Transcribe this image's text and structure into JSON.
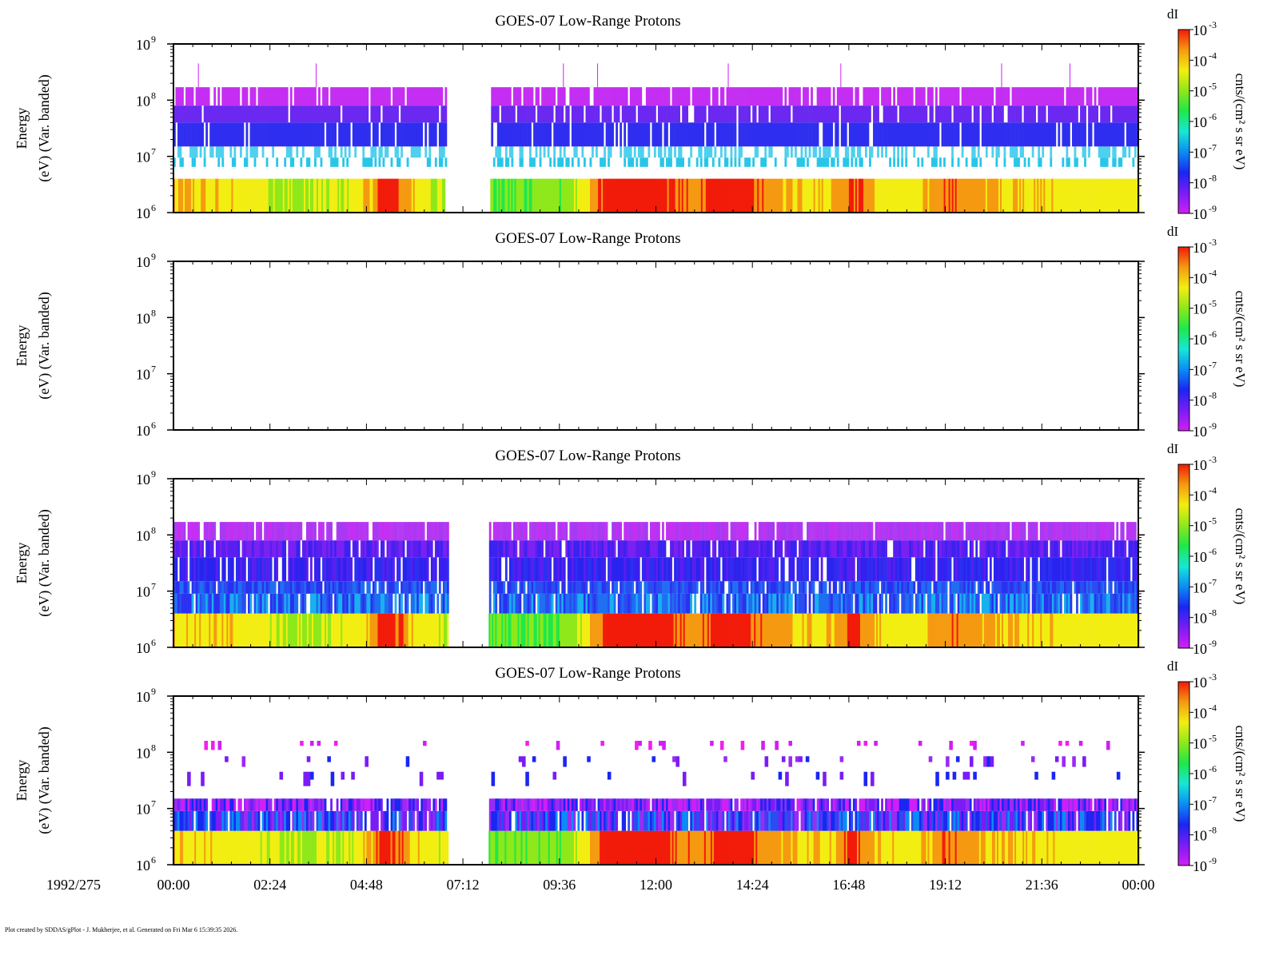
{
  "footer": "Plot created by SDDAS/gPlot - J. Mukherjee, et al.  Generated on Fri Mar 6 15:39:35 2026.",
  "date_label": "1992/275",
  "x_ticks": [
    "00:00",
    "02:24",
    "04:48",
    "07:12",
    "09:36",
    "12:00",
    "14:24",
    "16:48",
    "19:12",
    "21:36",
    "00:00"
  ],
  "colorbar": {
    "label": "dI",
    "unit": "cnts/(cm² s sr eV)",
    "base": "10",
    "exponents": [
      "-3",
      "-4",
      "-5",
      "-6",
      "-7",
      "-8",
      "-9"
    ]
  },
  "colors": {
    "scale": [
      "#d11ef5",
      "#7a1cf5",
      "#1a26f2",
      "#0a8cf5",
      "#18e6d6",
      "#1ee84a",
      "#8ee81a",
      "#f2ee12",
      "#f59a10",
      "#f21a08"
    ]
  },
  "chart_data": [
    {
      "type": "heatmap",
      "title": "GOES-07 Low-Range Protons",
      "ylabel": [
        "Energy",
        "(eV) (Var. banded)"
      ],
      "yscale": "log",
      "ylim": [
        1000000,
        1000000000
      ],
      "y_ticks": [
        {
          "base": "10",
          "exp": "9"
        },
        {
          "base": "10",
          "exp": "8"
        },
        {
          "base": "10",
          "exp": "7"
        },
        {
          "base": "10",
          "exp": "6"
        }
      ],
      "xlim_hours": [
        0,
        24
      ],
      "data_gap_hours": [
        6.8,
        7.87
      ],
      "bands": [
        {
          "range_eV": [
            1000000,
            4000000
          ],
          "pattern": "smooth"
        },
        {
          "range_eV": [
            6500000,
            9500000
          ],
          "pattern": "sparse",
          "color": "#27c6e8"
        },
        {
          "range_eV": [
            9500000,
            15000000
          ],
          "pattern": "sparse",
          "color": "#4fd0ee"
        },
        {
          "range_eV": [
            15000000,
            40000000
          ],
          "pattern": "dense",
          "color": "#2f2ef0"
        },
        {
          "range_eV": [
            40000000,
            80000000
          ],
          "pattern": "dense",
          "color": "#6a28f0"
        },
        {
          "range_eV": [
            80000000,
            170000000
          ],
          "pattern": "dense",
          "color": "#c42ef2"
        }
      ],
      "spikes_hours": [
        0.62,
        3.55,
        9.7,
        10.55,
        13.8,
        16.6,
        20.6,
        22.3
      ],
      "colorbar_range": [
        1e-09,
        0.001
      ]
    },
    {
      "type": "heatmap",
      "title": "GOES-07 Low-Range Protons",
      "ylabel": [
        "Energy",
        "(eV) (Var. banded)"
      ],
      "yscale": "log",
      "ylim": [
        1000000,
        1000000000
      ],
      "y_ticks": [
        {
          "base": "10",
          "exp": "9"
        },
        {
          "base": "10",
          "exp": "8"
        },
        {
          "base": "10",
          "exp": "7"
        },
        {
          "base": "10",
          "exp": "6"
        }
      ],
      "xlim_hours": [
        0,
        24
      ],
      "bands": [],
      "colorbar_range": [
        1e-09,
        0.001
      ]
    },
    {
      "type": "heatmap",
      "title": "GOES-07 Low-Range Protons",
      "ylabel": [
        "Energy",
        "(eV) (Var. banded)"
      ],
      "yscale": "log",
      "ylim": [
        1000000,
        1000000000
      ],
      "y_ticks": [
        {
          "base": "10",
          "exp": "9"
        },
        {
          "base": "10",
          "exp": "8"
        },
        {
          "base": "10",
          "exp": "7"
        },
        {
          "base": "10",
          "exp": "6"
        }
      ],
      "xlim_hours": [
        0,
        24
      ],
      "data_gap_hours": [
        6.85,
        7.83
      ],
      "bands": [
        {
          "range_eV": [
            1000000,
            4000000
          ],
          "pattern": "smooth"
        },
        {
          "range_eV": [
            4000000,
            9000000
          ],
          "pattern": "mixed",
          "palette": [
            "#1f6ef2",
            "#2a4cf0",
            "#18b0ee",
            "#2a30f0"
          ]
        },
        {
          "range_eV": [
            9000000,
            15000000
          ],
          "pattern": "mixed",
          "palette": [
            "#2a30f0",
            "#1f6ef2",
            "#2a4cf0"
          ]
        },
        {
          "range_eV": [
            15000000,
            40000000
          ],
          "pattern": "mixed",
          "palette": [
            "#2a22ee",
            "#3a20f0",
            "#5a1ef0",
            "#2a30f0"
          ]
        },
        {
          "range_eV": [
            40000000,
            80000000
          ],
          "pattern": "mixed",
          "palette": [
            "#5a1ef0",
            "#3a22f0",
            "#7a20f2"
          ]
        },
        {
          "range_eV": [
            80000000,
            170000000
          ],
          "pattern": "mixed",
          "palette": [
            "#b43af2",
            "#c42ef2",
            "#a63af2"
          ]
        }
      ],
      "colorbar_range": [
        1e-09,
        0.001
      ]
    },
    {
      "type": "heatmap",
      "title": "GOES-07 Low-Range Protons",
      "ylabel": [
        "Energy",
        "(eV) (Var. banded)"
      ],
      "yscale": "log",
      "ylim": [
        1000000,
        1000000000
      ],
      "y_ticks": [
        {
          "base": "10",
          "exp": "9"
        },
        {
          "base": "10",
          "exp": "8"
        },
        {
          "base": "10",
          "exp": "7"
        },
        {
          "base": "10",
          "exp": "6"
        }
      ],
      "xlim_hours": [
        0,
        24
      ],
      "data_gap_hours": [
        6.85,
        7.83
      ],
      "bands": [
        {
          "range_eV": [
            1000000,
            4000000
          ],
          "pattern": "smooth"
        },
        {
          "range_eV": [
            4000000,
            9000000
          ],
          "pattern": "mixed",
          "palette": [
            "#1a26f2",
            "#7a1cf5",
            "#0a8cf5",
            "#9a2af5",
            "#2a4cf0"
          ]
        },
        {
          "range_eV": [
            9000000,
            15000000
          ],
          "pattern": "mixed",
          "palette": [
            "#7a1cf5",
            "#1a26f2",
            "#d11ef5",
            "#9a2af5"
          ]
        },
        {
          "range_eV": [
            25000000,
            45000000
          ],
          "pattern": "scatter",
          "palette": [
            "#7a1cf5",
            "#1a26f2"
          ]
        },
        {
          "range_eV": [
            55000000,
            85000000
          ],
          "pattern": "scatter",
          "palette": [
            "#7a1cf5",
            "#9a2af5",
            "#1a26f2"
          ]
        },
        {
          "range_eV": [
            110000000,
            160000000
          ],
          "pattern": "scatter",
          "palette": [
            "#f21ef0",
            "#d11ef5"
          ]
        }
      ],
      "colorbar_range": [
        1e-09,
        0.001
      ]
    }
  ]
}
